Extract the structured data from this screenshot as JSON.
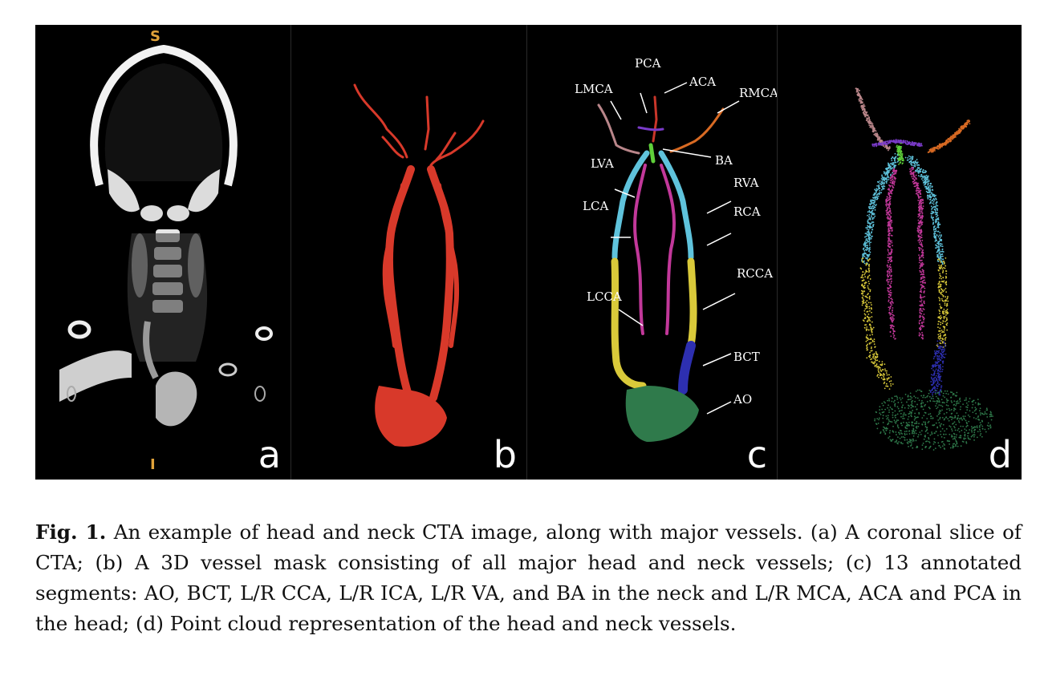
{
  "figure": {
    "panels": [
      {
        "letter": "a",
        "orientation_top": "S",
        "orientation_bottom": "I"
      },
      {
        "letter": "b"
      },
      {
        "letter": "c",
        "vessel_labels": [
          "PCA",
          "ACA",
          "LMCA",
          "RMCA",
          "BA",
          "LVA",
          "RVA",
          "LCA",
          "RCA",
          "RCCA",
          "LCCA",
          "BCT",
          "AO"
        ]
      },
      {
        "letter": "d"
      }
    ],
    "colors": {
      "background": "#000000",
      "mask_red": "#d8392a",
      "ao_green": "#2f7a4b",
      "bct_blue": "#2d2fb0",
      "cca_yellow": "#d9c93a",
      "ica_cyan": "#5fc3dc",
      "va_magenta": "#c2389a",
      "lmca_pink": "#b9868a",
      "rmca_orange": "#d86a23",
      "aca_red": "#c9362a",
      "pca_purple": "#7a3bc9",
      "ba_green": "#5fcf3a",
      "orientation_orange": "#e0a23a"
    }
  },
  "caption": {
    "label": "Fig. 1.",
    "text": "An example of head and neck CTA image, along with major vessels. (a) A coronal slice of CTA; (b) A 3D vessel mask consisting of all major head and neck vessels; (c) 13 annotated segments: AO, BCT, L/R CCA, L/R ICA, L/R VA, and BA in the neck and L/R MCA, ACA and PCA in the head; (d) Point cloud representation of the head and neck vessels."
  }
}
